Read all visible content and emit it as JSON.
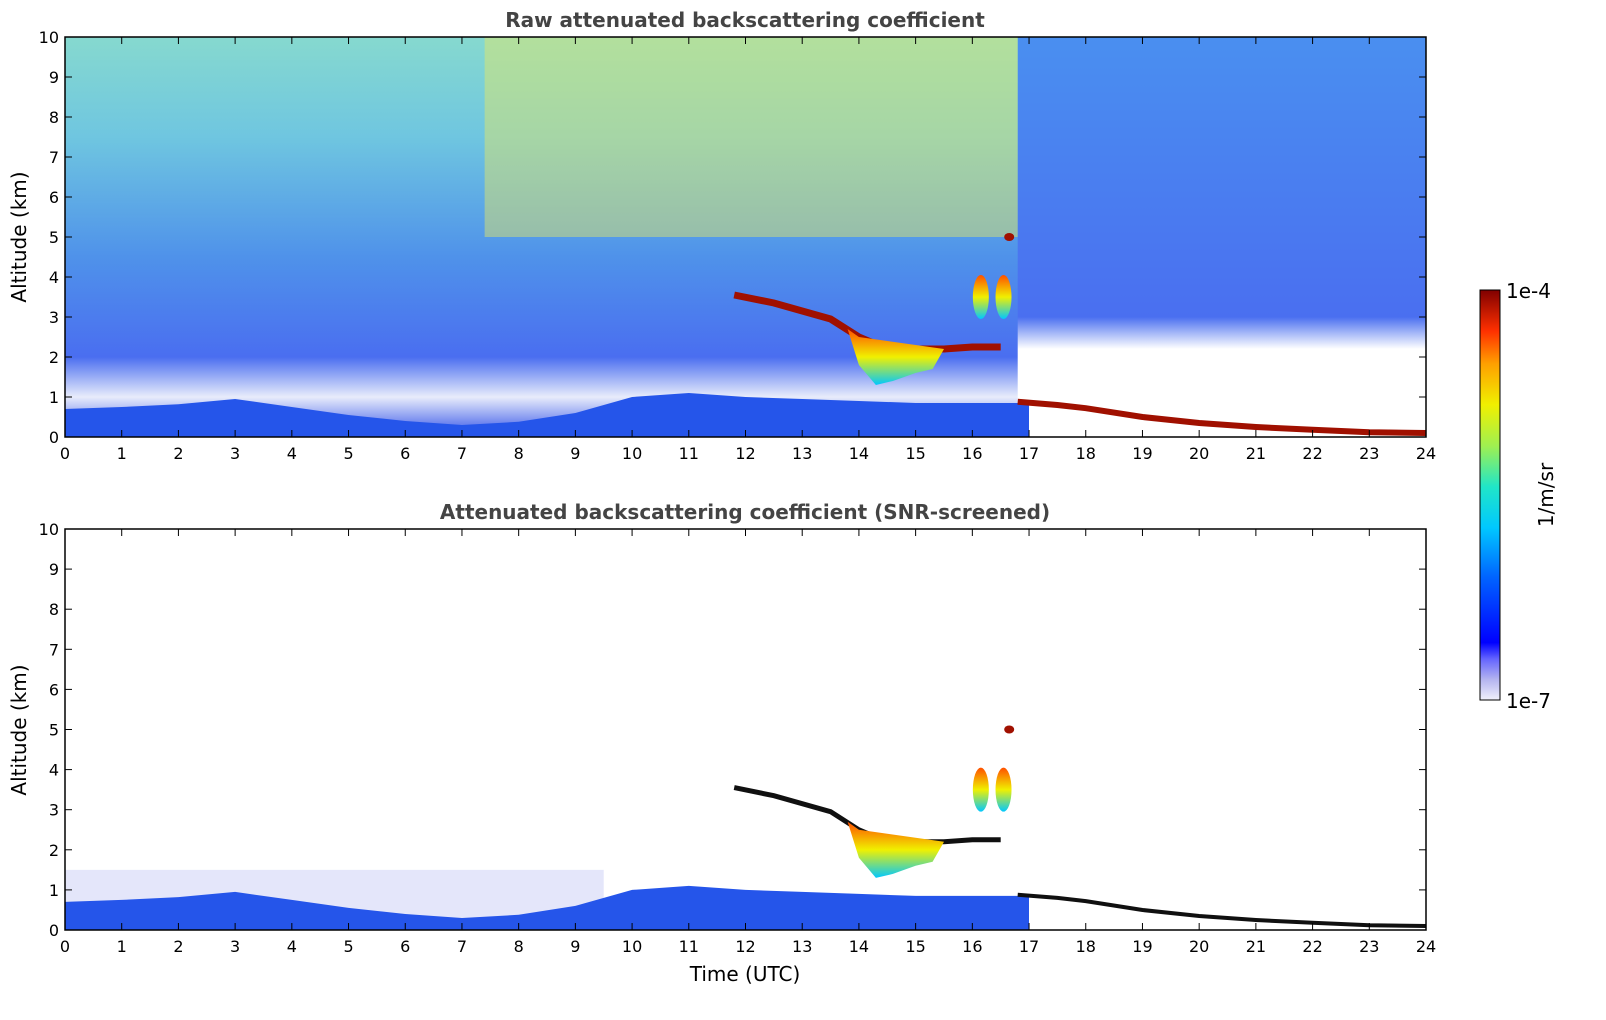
{
  "chart_data": [
    {
      "type": "heatmap",
      "title": "Raw attenuated backscattering coefficient",
      "xlabel": "",
      "ylabel": "Altitude (km)",
      "xlim": [
        0,
        24
      ],
      "ylim": [
        0,
        10
      ],
      "xticks": [
        0,
        1,
        2,
        3,
        4,
        5,
        6,
        7,
        8,
        9,
        10,
        11,
        12,
        13,
        14,
        15,
        16,
        17,
        18,
        19,
        20,
        21,
        22,
        23,
        24
      ],
      "yticks": [
        0,
        1,
        2,
        3,
        4,
        5,
        6,
        7,
        8,
        9,
        10
      ],
      "features": [
        {
          "type": "layer",
          "name": "boundary-layer-low",
          "points": [
            [
              0,
              0.7
            ],
            [
              1,
              0.75
            ],
            [
              2,
              0.82
            ],
            [
              3,
              0.95
            ],
            [
              4,
              0.75
            ],
            [
              5,
              0.55
            ],
            [
              6,
              0.4
            ],
            [
              7,
              0.3
            ],
            [
              8,
              0.38
            ],
            [
              9,
              0.6
            ],
            [
              10,
              1.0
            ],
            [
              11,
              1.1
            ],
            [
              12,
              1.0
            ],
            [
              13,
              0.95
            ],
            [
              14,
              0.9
            ],
            [
              15,
              0.85
            ],
            [
              16,
              0.85
            ],
            [
              17,
              0.85
            ]
          ]
        },
        {
          "type": "cloud",
          "name": "mid-level-layer",
          "points": [
            [
              11.8,
              3.55
            ],
            [
              12.5,
              3.35
            ],
            [
              13.5,
              2.95
            ],
            [
              14.0,
              2.5
            ],
            [
              14.5,
              2.2
            ],
            [
              15.0,
              2.2
            ],
            [
              15.5,
              2.2
            ],
            [
              16.0,
              2.25
            ],
            [
              16.5,
              2.25
            ]
          ]
        },
        {
          "type": "cloud",
          "name": "convective-core",
          "points": [
            [
              14.0,
              1.8
            ],
            [
              14.3,
              1.3
            ],
            [
              14.6,
              1.4
            ],
            [
              15.0,
              1.6
            ],
            [
              15.3,
              1.7
            ]
          ]
        },
        {
          "type": "cloud",
          "name": "isolated-cells",
          "points": [
            [
              16.15,
              3.5
            ],
            [
              16.55,
              3.5
            ],
            [
              16.65,
              5.0
            ]
          ]
        },
        {
          "type": "layer",
          "name": "descending-layer",
          "points": [
            [
              16.8,
              0.88
            ],
            [
              17.5,
              0.8
            ],
            [
              18,
              0.72
            ],
            [
              19,
              0.5
            ],
            [
              20,
              0.35
            ],
            [
              21,
              0.25
            ],
            [
              22,
              0.18
            ],
            [
              23,
              0.12
            ],
            [
              24,
              0.1
            ]
          ]
        }
      ]
    },
    {
      "type": "heatmap",
      "title": "Attenuated backscattering coefficient (SNR-screened)",
      "xlabel": "Time (UTC)",
      "ylabel": "Altitude (km)",
      "xlim": [
        0,
        24
      ],
      "ylim": [
        0,
        10
      ],
      "xticks": [
        0,
        1,
        2,
        3,
        4,
        5,
        6,
        7,
        8,
        9,
        10,
        11,
        12,
        13,
        14,
        15,
        16,
        17,
        18,
        19,
        20,
        21,
        22,
        23,
        24
      ],
      "yticks": [
        0,
        1,
        2,
        3,
        4,
        5,
        6,
        7,
        8,
        9,
        10
      ]
    }
  ],
  "colorbar": {
    "label": "1/m/sr",
    "max_label": "1e-4",
    "min_label": "1e-7",
    "colormap": "jet",
    "scale": "log"
  }
}
